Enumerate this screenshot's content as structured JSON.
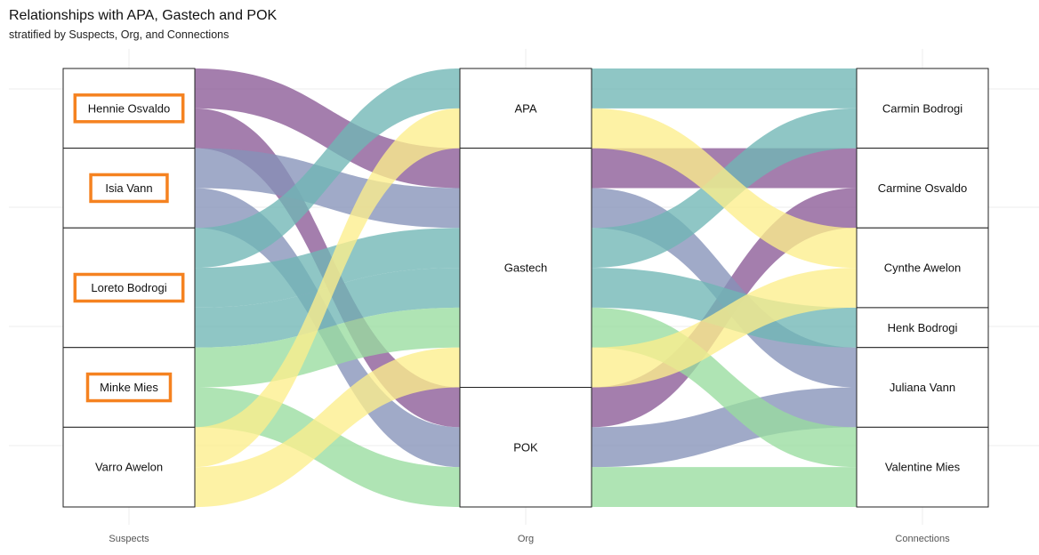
{
  "chart_data": {
    "type": "alluvial",
    "title": "Relationships with APA, Gastech and POK",
    "subtitle": "stratified by Suspects, Org, and Connections",
    "axes": [
      "Suspects",
      "Org",
      "Connections"
    ],
    "grid": true,
    "colors": {
      "purple": "#8a5a96",
      "blue": "#8592b8",
      "teal": "#6fb6b5",
      "green": "#98dc9f",
      "yellow": "#fcee8c"
    },
    "strata": {
      "Suspects": [
        {
          "name": "Hennie Osvaldo",
          "count": 2,
          "highlighted": true
        },
        {
          "name": "Isia Vann",
          "count": 2,
          "highlighted": true
        },
        {
          "name": "Loreto Bodrogi",
          "count": 3,
          "highlighted": true
        },
        {
          "name": "Minke Mies",
          "count": 2,
          "highlighted": true
        },
        {
          "name": "Varro Awelon",
          "count": 2,
          "highlighted": false
        }
      ],
      "Org": [
        {
          "name": "APA",
          "count": 2
        },
        {
          "name": "Gastech",
          "count": 6
        },
        {
          "name": "POK",
          "count": 3
        }
      ],
      "Connections": [
        {
          "name": "Carmin Bodrogi",
          "count": 2
        },
        {
          "name": "Carmine Osvaldo",
          "count": 2
        },
        {
          "name": "Cynthe Awelon",
          "count": 2
        },
        {
          "name": "Henk Bodrogi",
          "count": 1
        },
        {
          "name": "Juliana Vann",
          "count": 2
        },
        {
          "name": "Valentine Mies",
          "count": 2
        }
      ]
    },
    "flows": [
      {
        "suspect": "Hennie Osvaldo",
        "org": "Gastech",
        "connection": "Carmine Osvaldo",
        "color": "purple"
      },
      {
        "suspect": "Hennie Osvaldo",
        "org": "POK",
        "connection": "Carmine Osvaldo",
        "color": "purple"
      },
      {
        "suspect": "Isia Vann",
        "org": "Gastech",
        "connection": "Juliana Vann",
        "color": "blue"
      },
      {
        "suspect": "Isia Vann",
        "org": "POK",
        "connection": "Juliana Vann",
        "color": "blue"
      },
      {
        "suspect": "Loreto Bodrogi",
        "org": "APA",
        "connection": "Carmin Bodrogi",
        "color": "teal"
      },
      {
        "suspect": "Loreto Bodrogi",
        "org": "Gastech",
        "connection": "Carmin Bodrogi",
        "color": "teal"
      },
      {
        "suspect": "Loreto Bodrogi",
        "org": "Gastech",
        "connection": "Henk Bodrogi",
        "color": "teal"
      },
      {
        "suspect": "Minke Mies",
        "org": "Gastech",
        "connection": "Valentine Mies",
        "color": "green"
      },
      {
        "suspect": "Minke Mies",
        "org": "POK",
        "connection": "Valentine Mies",
        "color": "green"
      },
      {
        "suspect": "Varro Awelon",
        "org": "APA",
        "connection": "Cynthe Awelon",
        "color": "yellow"
      },
      {
        "suspect": "Varro Awelon",
        "org": "Gastech",
        "connection": "Cynthe Awelon",
        "color": "yellow"
      }
    ]
  }
}
